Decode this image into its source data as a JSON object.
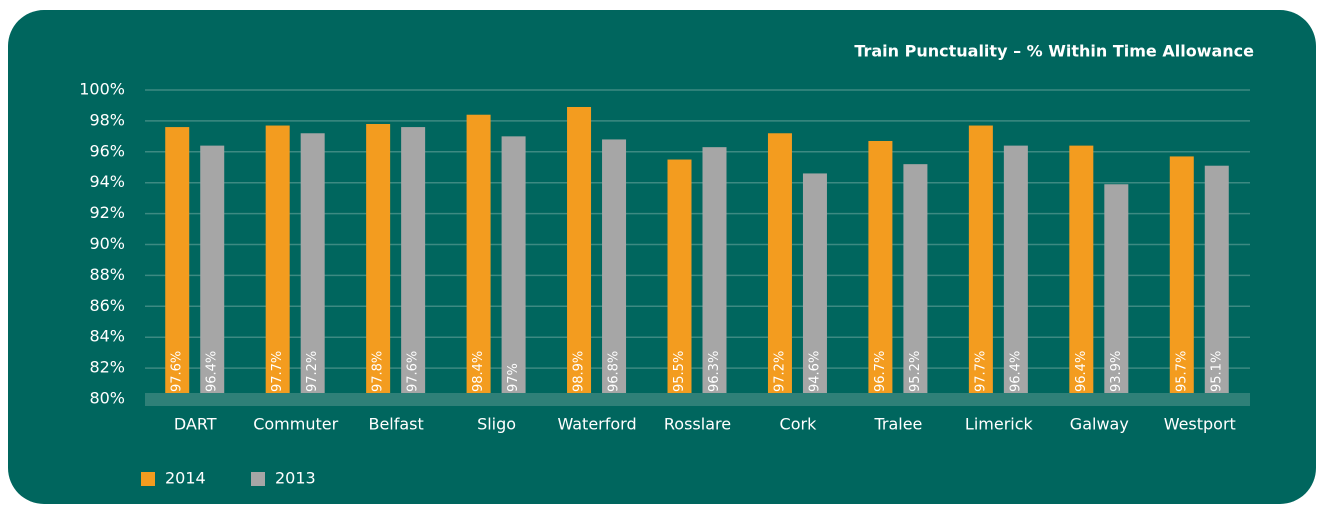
{
  "chart_data": {
    "type": "bar",
    "title": "Train Punctuality – % Within Time Allowance",
    "categories": [
      "DART",
      "Commuter",
      "Belfast",
      "Sligo",
      "Waterford",
      "Rosslare",
      "Cork",
      "Tralee",
      "Limerick",
      "Galway",
      "Westport"
    ],
    "series": [
      {
        "name": "2014",
        "color": "#f39c1f",
        "values": [
          97.6,
          97.7,
          97.8,
          98.4,
          98.9,
          95.5,
          97.2,
          96.7,
          97.7,
          96.4,
          95.7
        ],
        "value_labels": [
          "97.6%",
          "97.7%",
          "97.8%",
          "98.4%",
          "98.9%",
          "95.5%",
          "97.2%",
          "96.7%",
          "97.7%",
          "96.4%",
          "95.7%"
        ]
      },
      {
        "name": "2013",
        "color": "#a6a6a6",
        "values": [
          96.4,
          97.2,
          97.6,
          97,
          96.8,
          96.3,
          94.6,
          95.2,
          96.4,
          93.9,
          95.1
        ],
        "value_labels": [
          "96.4%",
          "97.2%",
          "97.6%",
          "97%",
          "96.8%",
          "96.3%",
          "94.6%",
          "95.2%",
          "96.4%",
          "93.9%",
          "95.1%"
        ]
      }
    ],
    "ylim": [
      80,
      100
    ],
    "yticks": [
      {
        "value": 80,
        "label": "80%"
      },
      {
        "value": 82,
        "label": "82%"
      },
      {
        "value": 84,
        "label": "84%"
      },
      {
        "value": 86,
        "label": "86%"
      },
      {
        "value": 88,
        "label": "88%"
      },
      {
        "value": 90,
        "label": "90%"
      },
      {
        "value": 92,
        "label": "92%"
      },
      {
        "value": 94,
        "label": "94%"
      },
      {
        "value": 96,
        "label": "96%"
      },
      {
        "value": 98,
        "label": "98%"
      },
      {
        "value": 100,
        "label": "100%"
      }
    ],
    "grid": true,
    "legend": "bottom-left"
  }
}
